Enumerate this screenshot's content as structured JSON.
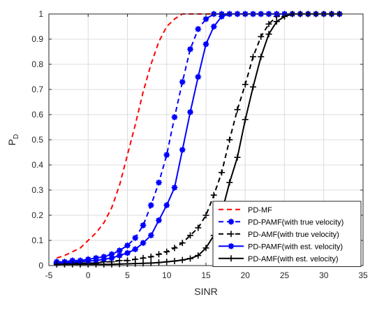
{
  "chart_data": {
    "type": "line",
    "title": "",
    "xlabel": "SINR",
    "ylabel": "P",
    "ylabel_subscript": "D",
    "xlim": [
      -5,
      35
    ],
    "ylim": [
      0,
      1
    ],
    "xticks": [
      -5,
      0,
      5,
      10,
      15,
      20,
      25,
      30,
      35
    ],
    "yticks": [
      0,
      0.1,
      0.2,
      0.3,
      0.4,
      0.5,
      0.6,
      0.7,
      0.8,
      0.9,
      1
    ],
    "grid": true,
    "legend_position": "bottom-right",
    "series": [
      {
        "name": "PD-MF",
        "color": "#ff0000",
        "line_style": "dashed",
        "marker": "none",
        "x": [
          -4,
          -3,
          -2,
          -1,
          0,
          1,
          2,
          3,
          4,
          5,
          6,
          7,
          8,
          9,
          10,
          11,
          12,
          13,
          14,
          15,
          16,
          17,
          18,
          19,
          20,
          21,
          22,
          23,
          24,
          25,
          26,
          27,
          28,
          29,
          30,
          31,
          32
        ],
        "y": [
          0.03,
          0.04,
          0.055,
          0.07,
          0.1,
          0.13,
          0.17,
          0.23,
          0.32,
          0.44,
          0.56,
          0.69,
          0.8,
          0.89,
          0.95,
          0.98,
          1.0,
          1.0,
          1.0,
          1.0,
          1.0,
          1.0,
          1.0,
          1.0,
          1.0,
          1.0,
          1.0,
          1.0,
          1.0,
          1.0,
          1.0,
          1.0,
          1.0,
          1.0,
          1.0,
          1.0,
          1.0
        ]
      },
      {
        "name": "PD-PAMF(with true velocity)",
        "color": "#0000ff",
        "line_style": "dashed",
        "marker": "asterisk",
        "x": [
          -4,
          -3,
          -2,
          -1,
          0,
          1,
          2,
          3,
          4,
          5,
          6,
          7,
          8,
          9,
          10,
          11,
          12,
          13,
          14,
          15,
          16,
          17,
          18,
          19,
          20,
          21,
          22,
          23,
          24,
          25,
          26,
          27,
          28,
          29,
          30,
          31,
          32
        ],
        "y": [
          0.015,
          0.015,
          0.02,
          0.02,
          0.025,
          0.03,
          0.035,
          0.045,
          0.06,
          0.08,
          0.11,
          0.16,
          0.24,
          0.33,
          0.44,
          0.59,
          0.73,
          0.86,
          0.94,
          0.98,
          1.0,
          1.0,
          1.0,
          1.0,
          1.0,
          1.0,
          1.0,
          1.0,
          1.0,
          1.0,
          1.0,
          1.0,
          1.0,
          1.0,
          1.0,
          1.0,
          1.0
        ]
      },
      {
        "name": "PD-AMF(with true velocity)",
        "color": "#000000",
        "line_style": "dashed",
        "marker": "plus",
        "x": [
          -4,
          -3,
          -2,
          -1,
          0,
          1,
          2,
          3,
          4,
          5,
          6,
          7,
          8,
          9,
          10,
          11,
          12,
          13,
          14,
          15,
          16,
          17,
          18,
          19,
          20,
          21,
          22,
          23,
          24,
          25,
          26,
          27,
          28,
          29,
          30,
          31,
          32
        ],
        "y": [
          0.01,
          0.01,
          0.01,
          0.01,
          0.01,
          0.01,
          0.015,
          0.015,
          0.02,
          0.02,
          0.025,
          0.03,
          0.035,
          0.045,
          0.055,
          0.07,
          0.09,
          0.12,
          0.15,
          0.2,
          0.28,
          0.37,
          0.5,
          0.62,
          0.72,
          0.83,
          0.91,
          0.96,
          0.99,
          1.0,
          1.0,
          1.0,
          1.0,
          1.0,
          1.0,
          1.0,
          1.0
        ]
      },
      {
        "name": "PD-PAMF(with est. velocity)",
        "color": "#0000ff",
        "line_style": "solid",
        "marker": "asterisk",
        "x": [
          -4,
          -3,
          -2,
          -1,
          0,
          1,
          2,
          3,
          4,
          5,
          6,
          7,
          8,
          9,
          10,
          11,
          12,
          13,
          14,
          15,
          16,
          17,
          18,
          19,
          20,
          21,
          22,
          23,
          24,
          25,
          26,
          27,
          28,
          29,
          30,
          31,
          32
        ],
        "y": [
          0.01,
          0.012,
          0.014,
          0.016,
          0.018,
          0.02,
          0.025,
          0.03,
          0.04,
          0.05,
          0.065,
          0.09,
          0.12,
          0.18,
          0.24,
          0.31,
          0.46,
          0.61,
          0.75,
          0.88,
          0.95,
          0.99,
          1.0,
          1.0,
          1.0,
          1.0,
          1.0,
          1.0,
          1.0,
          1.0,
          1.0,
          1.0,
          1.0,
          1.0,
          1.0,
          1.0,
          1.0
        ]
      },
      {
        "name": "PD-AMF(with est. velocity)",
        "color": "#000000",
        "line_style": "solid",
        "marker": "plus",
        "x": [
          -4,
          -3,
          -2,
          -1,
          0,
          1,
          2,
          3,
          4,
          5,
          6,
          7,
          8,
          9,
          10,
          11,
          12,
          13,
          14,
          15,
          16,
          17,
          18,
          19,
          20,
          21,
          22,
          23,
          24,
          25,
          26,
          27,
          28,
          29,
          30,
          31,
          32
        ],
        "y": [
          0.005,
          0.005,
          0.005,
          0.005,
          0.005,
          0.005,
          0.005,
          0.005,
          0.006,
          0.007,
          0.008,
          0.009,
          0.01,
          0.012,
          0.015,
          0.018,
          0.022,
          0.028,
          0.04,
          0.07,
          0.12,
          0.21,
          0.33,
          0.43,
          0.58,
          0.71,
          0.83,
          0.92,
          0.97,
          0.99,
          1.0,
          1.0,
          1.0,
          1.0,
          1.0,
          1.0,
          1.0
        ]
      }
    ]
  }
}
